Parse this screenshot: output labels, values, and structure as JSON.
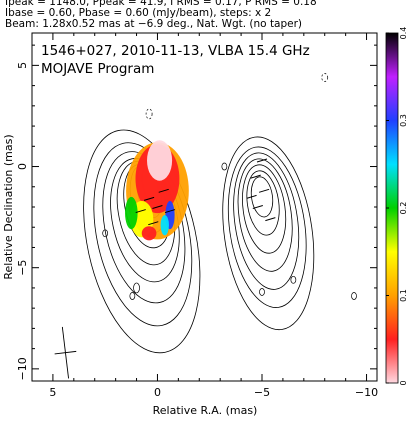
{
  "header": {
    "line1": "Ipeak = 1148.0, Ppeak = 41.9, I RMS = 0.17, P RMS = 0.18",
    "line2": "Ibase = 0.60, Pbase = 0.60 (mJy/beam), steps: x 2",
    "line3": "Beam: 1.28x0.52 mas at −6.9 deg., Nat. Wgt. (no taper)"
  },
  "chart_data": {
    "type": "heatmap",
    "title": "1546+027, 2010-11-13, VLBA 15.4 GHz",
    "subtitle": "MOJAVE Program",
    "xlabel": "Relative R.A. (mas)",
    "ylabel": "Relative Declination (mas)",
    "xlim": [
      6,
      -10.5
    ],
    "ylim": [
      -10.6,
      6.6
    ],
    "x_ticks": [
      5,
      0,
      -5,
      -10
    ],
    "x_tick_labels": [
      "5",
      "0",
      "−5",
      "−10"
    ],
    "y_ticks": [
      5,
      0,
      -5,
      -10
    ],
    "y_tick_labels": [
      "5",
      "0",
      "−5",
      "−10"
    ],
    "colorbar": {
      "range": [
        0,
        0.4
      ],
      "ticks": [
        0,
        0.1,
        0.2,
        0.3,
        0.4
      ],
      "tick_labels": [
        "0",
        "0.1",
        "0.2",
        "0.3",
        "0.4"
      ],
      "colors": [
        "#ffd8e0",
        "#ff2020",
        "#ffa000",
        "#ffff00",
        "#00d000",
        "#00e0ff",
        "#2040ff",
        "#c020ff",
        "#000000"
      ]
    },
    "core_component": {
      "ra": 0.0,
      "dec": 0.0,
      "peak_mJy_per_beam": 1148.0
    },
    "jet_component": {
      "ra": -5.0,
      "dec": -1.5
    },
    "beam": {
      "major_mas": 1.28,
      "minor_mas": 0.52,
      "pa_deg": -6.9
    },
    "contour_base_mJy_per_beam": 0.6,
    "contour_step_factor": 2
  }
}
